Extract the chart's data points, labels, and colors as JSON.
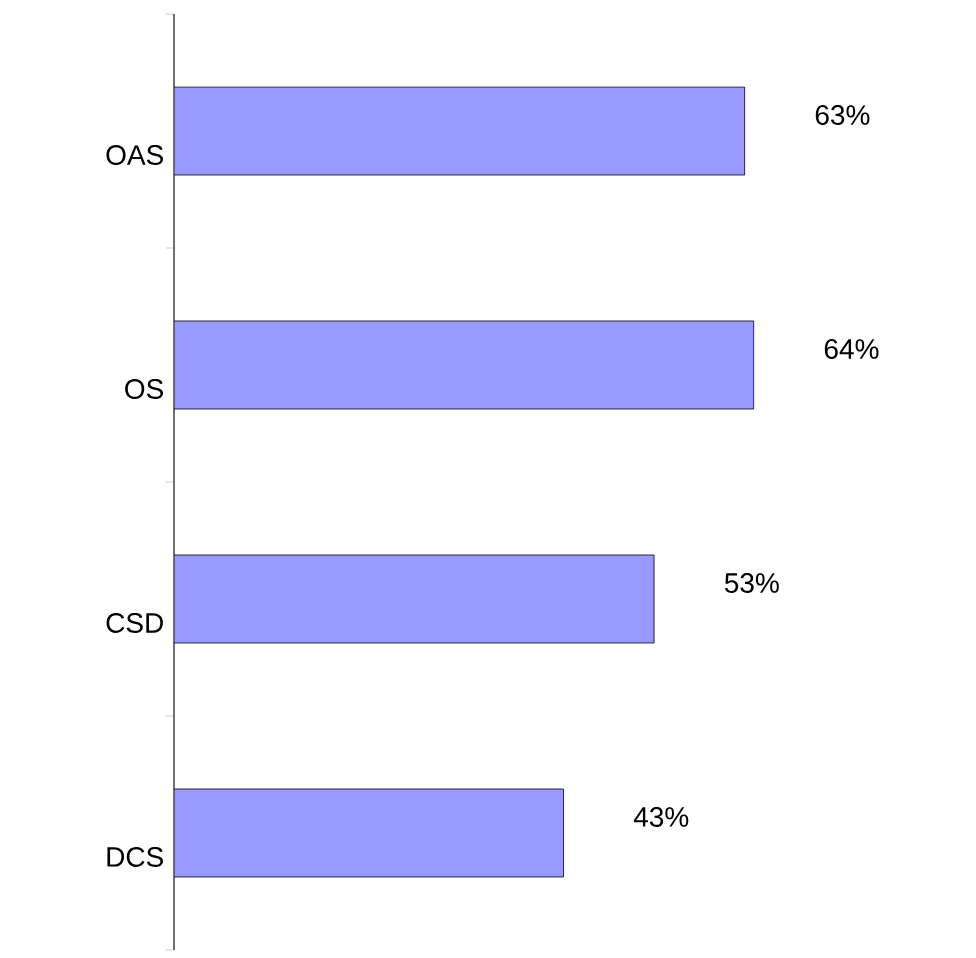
{
  "chart_data": {
    "type": "bar",
    "orientation": "horizontal",
    "categories": [
      "OAS",
      "OS",
      "CSD",
      "DCS"
    ],
    "values": [
      63,
      64,
      53,
      43
    ],
    "color": "#9999ff",
    "value_labels": [
      "63%",
      "64%",
      "53%",
      "43%"
    ]
  }
}
